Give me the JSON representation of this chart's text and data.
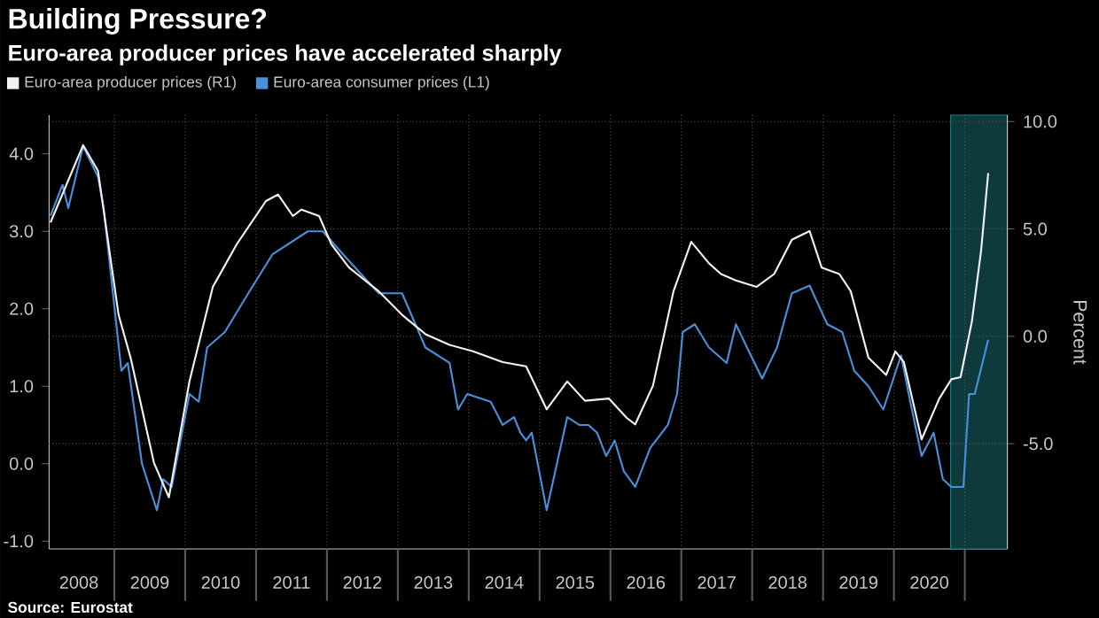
{
  "chart_data": {
    "type": "line",
    "title": "Building Pressure?",
    "subtitle": "Euro-area producer prices have accelerated sharply",
    "y2label": "Percent",
    "annotations": [
      "Source: Eurostat"
    ],
    "series": [
      {
        "name": "Euro-area producer prices (R1)",
        "color": "#f2f2f2",
        "axis": "y2",
        "x": [
          2008.1,
          2008.56,
          2008.77,
          2009.06,
          2009.23,
          2009.56,
          2009.77,
          2010.06,
          2010.39,
          2010.73,
          2011.14,
          2011.31,
          2011.52,
          2011.64,
          2011.89,
          2012.06,
          2012.31,
          2012.73,
          2013.06,
          2013.39,
          2013.73,
          2014.06,
          2014.48,
          2014.81,
          2015.1,
          2015.39,
          2015.64,
          2015.98,
          2016.23,
          2016.35,
          2016.6,
          2016.89,
          2017.14,
          2017.39,
          2017.56,
          2017.77,
          2018.06,
          2018.31,
          2018.56,
          2018.81,
          2018.98,
          2019.23,
          2019.39,
          2019.64,
          2019.89,
          2020.02,
          2020.14,
          2020.39,
          2020.64,
          2020.81,
          2020.94,
          2021.1,
          2021.23,
          2021.33
        ],
        "values": [
          5.3,
          8.9,
          7.7,
          1.0,
          -1.0,
          -5.9,
          -7.5,
          -2.1,
          2.3,
          4.3,
          6.3,
          6.6,
          5.6,
          5.9,
          5.6,
          4.3,
          3.2,
          2.1,
          1.0,
          0.1,
          -0.4,
          -0.7,
          -1.2,
          -1.4,
          -3.4,
          -2.1,
          -3.0,
          -2.9,
          -3.8,
          -4.1,
          -2.3,
          2.1,
          4.4,
          3.4,
          2.9,
          2.6,
          2.3,
          2.9,
          4.5,
          4.9,
          3.2,
          2.9,
          2.1,
          -1.0,
          -1.8,
          -0.7,
          -1.2,
          -4.8,
          -2.9,
          -2.0,
          -1.9,
          0.7,
          4.0,
          7.6
        ]
      },
      {
        "name": "Euro-area consumer prices (L1)",
        "color": "#4a8fdc",
        "x": [
          2008.1,
          2008.27,
          2008.35,
          2008.56,
          2008.77,
          2008.85,
          2008.98,
          2009.1,
          2009.19,
          2009.39,
          2009.6,
          2009.69,
          2009.81,
          2010.06,
          2010.19,
          2010.31,
          2010.56,
          2010.89,
          2011.23,
          2011.73,
          2011.94,
          2012.23,
          2012.73,
          2013.06,
          2013.39,
          2013.73,
          2013.85,
          2013.98,
          2014.31,
          2014.48,
          2014.64,
          2014.73,
          2014.81,
          2014.89,
          2015.1,
          2015.39,
          2015.56,
          2015.69,
          2015.81,
          2015.94,
          2016.06,
          2016.19,
          2016.35,
          2016.56,
          2016.81,
          2016.94,
          2017.02,
          2017.19,
          2017.39,
          2017.64,
          2017.77,
          2017.98,
          2018.14,
          2018.35,
          2018.56,
          2018.81,
          2019.06,
          2019.27,
          2019.44,
          2019.64,
          2019.85,
          2020.1,
          2020.23,
          2020.39,
          2020.56,
          2020.69,
          2020.81,
          2020.98,
          2021.06,
          2021.14,
          2021.33
        ],
        "values": [
          3.2,
          3.6,
          3.3,
          4.1,
          3.7,
          3.3,
          2.2,
          1.2,
          1.3,
          0.0,
          -0.6,
          -0.2,
          -0.3,
          0.9,
          0.8,
          1.5,
          1.7,
          2.2,
          2.7,
          3.0,
          3.0,
          2.7,
          2.2,
          2.2,
          1.5,
          1.3,
          0.7,
          0.9,
          0.8,
          0.5,
          0.6,
          0.4,
          0.3,
          0.4,
          -0.6,
          0.6,
          0.5,
          0.5,
          0.4,
          0.1,
          0.3,
          -0.1,
          -0.3,
          0.2,
          0.5,
          0.9,
          1.7,
          1.8,
          1.5,
          1.3,
          1.8,
          1.4,
          1.1,
          1.5,
          2.2,
          2.3,
          1.8,
          1.7,
          1.2,
          1.0,
          0.7,
          1.4,
          0.8,
          0.1,
          0.4,
          -0.2,
          -0.3,
          -0.3,
          0.9,
          0.9,
          1.6
        ]
      }
    ],
    "xlim": [
      2008.08,
      2021.6
    ],
    "xticks": [
      {
        "value": 2008.5,
        "label": "2008"
      },
      {
        "value": 2009,
        "label": null
      },
      {
        "value": 2009.5,
        "label": "2009"
      },
      {
        "value": 2010,
        "label": null
      },
      {
        "value": 2010.5,
        "label": "2010"
      },
      {
        "value": 2011,
        "label": null
      },
      {
        "value": 2011.5,
        "label": "2011"
      },
      {
        "value": 2012,
        "label": null
      },
      {
        "value": 2012.5,
        "label": "2012"
      },
      {
        "value": 2013,
        "label": null
      },
      {
        "value": 2013.5,
        "label": "2013"
      },
      {
        "value": 2014,
        "label": null
      },
      {
        "value": 2014.5,
        "label": "2014"
      },
      {
        "value": 2015,
        "label": null
      },
      {
        "value": 2015.5,
        "label": "2015"
      },
      {
        "value": 2016,
        "label": null
      },
      {
        "value": 2016.5,
        "label": "2016"
      },
      {
        "value": 2017,
        "label": null
      },
      {
        "value": 2017.5,
        "label": "2017"
      },
      {
        "value": 2018,
        "label": null
      },
      {
        "value": 2018.5,
        "label": "2018"
      },
      {
        "value": 2019,
        "label": null
      },
      {
        "value": 2019.5,
        "label": "2019"
      },
      {
        "value": 2020,
        "label": null
      },
      {
        "value": 2020.5,
        "label": "2020"
      },
      {
        "value": 2021,
        "label": null
      }
    ],
    "ylim": [
      -1.1,
      4.5
    ],
    "yticks": [
      {
        "value": -1,
        "label": "-1.0"
      },
      {
        "value": 0,
        "label": "0.0"
      },
      {
        "value": 1,
        "label": "1.0"
      },
      {
        "value": 2,
        "label": "2.0"
      },
      {
        "value": 3,
        "label": "3.0"
      },
      {
        "value": 4,
        "label": "4.0"
      }
    ],
    "y2lim": [
      -9.9,
      10.3
    ],
    "y2ticks": [
      {
        "value": -5,
        "label": "-5.0"
      },
      {
        "value": 0,
        "label": "0.0"
      },
      {
        "value": 5,
        "label": "5.0"
      },
      {
        "value": 10,
        "label": "10.0"
      }
    ],
    "bands": [
      {
        "axis": "x",
        "from": 2020.8,
        "to": 2021.6,
        "color": "#0e3a3c"
      }
    ],
    "grid": true,
    "legend": "top left",
    "line_style": "solid",
    "marker": "none"
  }
}
